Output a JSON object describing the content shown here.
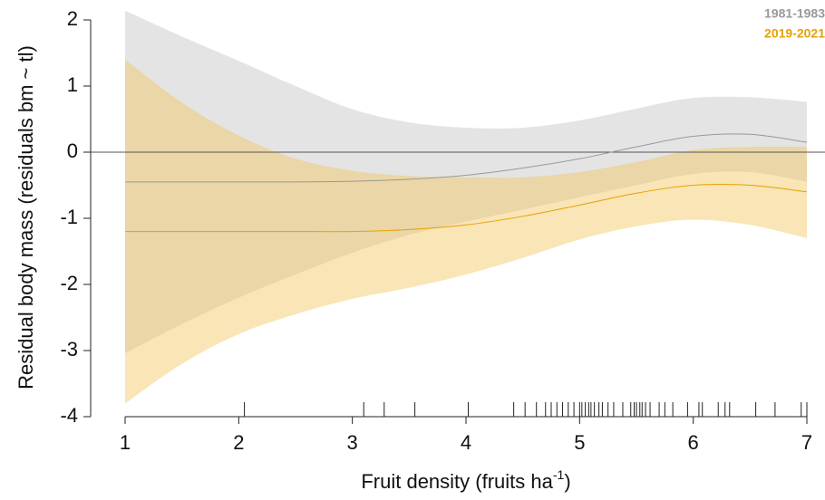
{
  "chart_data": {
    "type": "line-band",
    "ylabel": "Residual body mass (residuals bm ~ tl)",
    "xlabel": {
      "text": "Fruit density (fruits ha",
      "sup": "-1",
      "end": ")"
    },
    "x": [
      1,
      1.5,
      2,
      2.5,
      3,
      3.5,
      4,
      4.5,
      5,
      5.5,
      6,
      6.5,
      7
    ],
    "series": [
      {
        "name": "1981-1983",
        "color": "#999999",
        "band_color": "#d6d6d6",
        "values": [
          -0.45,
          -0.45,
          -0.45,
          -0.45,
          -0.44,
          -0.41,
          -0.35,
          -0.24,
          -0.1,
          0.08,
          0.24,
          0.27,
          0.15
        ],
        "upper": [
          2.14,
          1.75,
          1.38,
          1.0,
          0.65,
          0.45,
          0.37,
          0.37,
          0.48,
          0.66,
          0.82,
          0.83,
          0.76
        ],
        "lower": [
          -3.04,
          -2.6,
          -2.2,
          -1.85,
          -1.52,
          -1.25,
          -1.05,
          -0.87,
          -0.68,
          -0.5,
          -0.33,
          -0.3,
          -0.45
        ]
      },
      {
        "name": "2019-2021",
        "color": "#e6a200",
        "band_color": "#f2c65a",
        "values": [
          -1.2,
          -1.2,
          -1.2,
          -1.2,
          -1.2,
          -1.17,
          -1.1,
          -0.97,
          -0.8,
          -0.62,
          -0.5,
          -0.5,
          -0.6
        ],
        "upper": [
          1.4,
          0.75,
          0.25,
          -0.1,
          -0.28,
          -0.36,
          -0.38,
          -0.38,
          -0.3,
          -0.15,
          0.03,
          0.08,
          0.08
        ],
        "lower": [
          -3.8,
          -3.2,
          -2.75,
          -2.45,
          -2.22,
          -2.05,
          -1.85,
          -1.6,
          -1.32,
          -1.12,
          -1.02,
          -1.1,
          -1.3
        ]
      }
    ],
    "rug": [
      2.05,
      3.1,
      3.28,
      3.55,
      4.02,
      4.42,
      4.52,
      4.62,
      4.7,
      4.75,
      4.8,
      4.85,
      4.9,
      4.95,
      5.0,
      5.02,
      5.05,
      5.08,
      5.1,
      5.13,
      5.17,
      5.2,
      5.25,
      5.3,
      5.38,
      5.45,
      5.48,
      5.5,
      5.53,
      5.55,
      5.58,
      5.62,
      5.7,
      5.75,
      5.82,
      5.95,
      6.05,
      6.08,
      6.22,
      6.28,
      6.32,
      6.55,
      6.72,
      6.95,
      7.0
    ],
    "hline": 0,
    "xlim": [
      1,
      7
    ],
    "xticks": [
      1,
      2,
      3,
      4,
      5,
      6,
      7
    ],
    "ylim": [
      -4,
      2
    ],
    "yticks": [
      -4,
      -3,
      -2,
      -1,
      0,
      1,
      2
    ],
    "legend": "top-right"
  }
}
